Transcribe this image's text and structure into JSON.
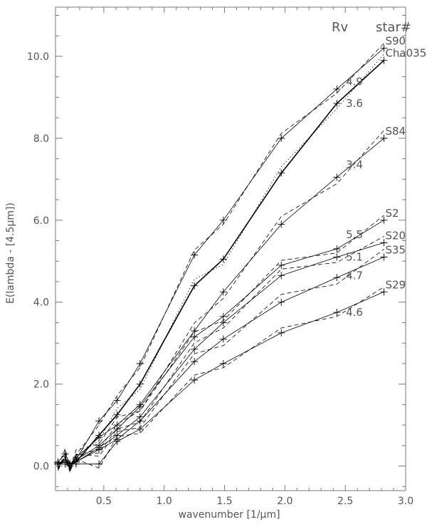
{
  "chart_data": {
    "type": "line",
    "xlabel": "wavenumber [1/μm]",
    "ylabel": "E(lambda - [4.5μm])",
    "xlim": [
      0.1,
      3.0
    ],
    "ylim": [
      -0.6,
      11.2
    ],
    "xticks": [
      0.5,
      1.0,
      1.5,
      2.0,
      2.5,
      3.0
    ],
    "xtick_labels": [
      "0.5",
      "1.0",
      "1.5",
      "2.0",
      "2.5",
      "3.0"
    ],
    "yticks": [
      0.0,
      2.0,
      4.0,
      6.0,
      8.0,
      10.0
    ],
    "ytick_labels": [
      "0.0",
      "2.0",
      "4.0",
      "6.0",
      "8.0",
      "10.0"
    ],
    "column_headers": {
      "rv": "Rv",
      "star": "star#"
    },
    "series": [
      {
        "name": "S90",
        "rv": "4.9",
        "x": [
          0.12,
          0.18,
          0.22,
          0.27,
          0.46,
          0.61,
          0.8,
          1.25,
          1.49,
          1.97,
          2.43,
          2.82
        ],
        "y": [
          0.1,
          0.3,
          0.05,
          0.15,
          1.1,
          1.6,
          2.5,
          5.15,
          6.0,
          8.0,
          9.2,
          10.2
        ]
      },
      {
        "name": "Cha035",
        "rv": "3.6",
        "x": [
          0.12,
          0.18,
          0.22,
          0.27,
          0.46,
          0.61,
          0.8,
          1.25,
          1.49,
          1.97,
          2.43,
          2.82
        ],
        "y": [
          0.08,
          0.1,
          0.05,
          0.1,
          0.75,
          1.25,
          2.0,
          4.4,
          5.05,
          7.15,
          8.85,
          9.9
        ]
      },
      {
        "name": "S84",
        "rv": "3.4",
        "x": [
          0.12,
          0.18,
          0.22,
          0.27,
          0.46,
          0.61,
          0.8,
          1.25,
          1.49,
          1.97,
          2.43,
          2.82
        ],
        "y": [
          0.05,
          0.15,
          0.05,
          0.2,
          0.7,
          1.0,
          1.5,
          3.3,
          4.25,
          5.9,
          7.05,
          8.0
        ]
      },
      {
        "name": "S2",
        "rv": "5.5",
        "x": [
          0.12,
          0.18,
          0.22,
          0.27,
          0.46,
          0.61,
          0.8,
          1.25,
          1.49,
          1.97,
          2.43,
          2.82
        ],
        "y": [
          0.05,
          0.1,
          0.0,
          0.15,
          0.5,
          0.9,
          1.45,
          3.15,
          3.65,
          4.9,
          5.3,
          6.0
        ]
      },
      {
        "name": "S20",
        "rv": "5.1",
        "x": [
          0.12,
          0.18,
          0.22,
          0.27,
          0.46,
          0.61,
          0.8,
          1.25,
          1.49,
          1.97,
          2.43,
          2.82
        ],
        "y": [
          0.05,
          0.1,
          0.05,
          0.1,
          0.45,
          0.75,
          1.2,
          2.85,
          3.5,
          4.65,
          5.1,
          5.45
        ]
      },
      {
        "name": "S35",
        "rv": "4.7",
        "x": [
          0.12,
          0.18,
          0.22,
          0.27,
          0.46,
          0.61,
          0.8,
          1.25,
          1.49,
          1.97,
          2.43,
          2.82
        ],
        "y": [
          0.05,
          0.05,
          0.0,
          0.1,
          0.4,
          0.65,
          1.1,
          2.55,
          3.1,
          4.0,
          4.6,
          5.1
        ]
      },
      {
        "name": "S29",
        "rv": "4.6",
        "x": [
          0.12,
          0.18,
          0.22,
          0.27,
          0.46,
          0.61,
          0.8,
          1.25,
          1.49,
          1.97,
          2.43,
          2.82
        ],
        "y": [
          0.05,
          0.1,
          0.05,
          0.05,
          0.05,
          0.6,
          0.9,
          2.1,
          2.5,
          3.25,
          3.75,
          4.25
        ]
      }
    ],
    "annotations": [
      {
        "text": "4.9",
        "x": 2.47,
        "y": 9.38
      },
      {
        "text": "3.6",
        "x": 2.47,
        "y": 8.85
      },
      {
        "text": "3.4",
        "x": 2.47,
        "y": 7.35
      },
      {
        "text": "5.5",
        "x": 2.47,
        "y": 5.65
      },
      {
        "text": "5.1",
        "x": 2.47,
        "y": 5.1
      },
      {
        "text": "4.7",
        "x": 2.47,
        "y": 4.65
      },
      {
        "text": "4.6",
        "x": 2.47,
        "y": 3.75
      }
    ],
    "grid": false,
    "legend": "none"
  }
}
